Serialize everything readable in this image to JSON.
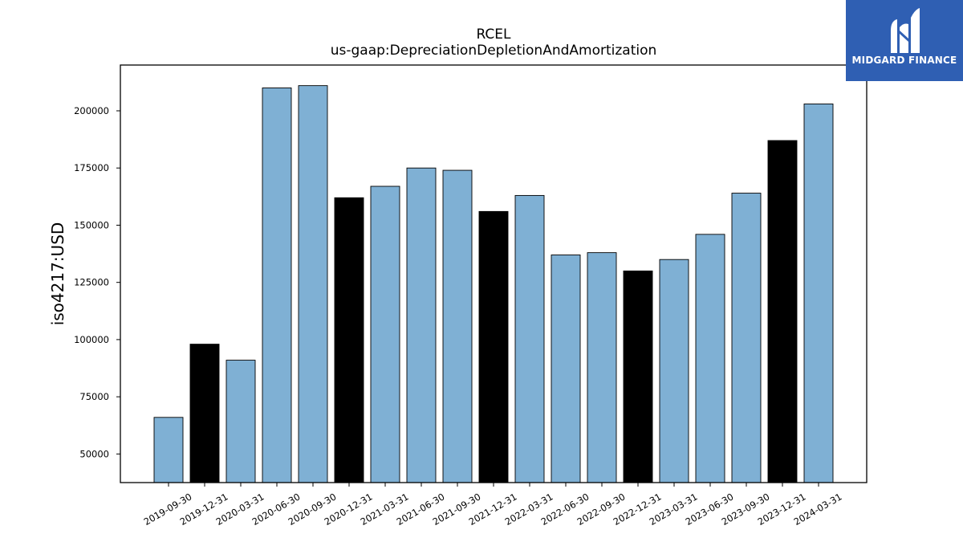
{
  "chart_data": {
    "type": "bar",
    "title": "RCEL",
    "subtitle": "us-gaap:DepreciationDepletionAndAmortization",
    "xlabel": "",
    "ylabel": "iso4217:USD",
    "ylim": [
      37500,
      220000
    ],
    "yticks": [
      50000,
      75000,
      100000,
      125000,
      150000,
      175000,
      200000
    ],
    "grid": false,
    "categories": [
      "2019-09-30",
      "2019-12-31",
      "2020-03-31",
      "2020-06-30",
      "2020-09-30",
      "2020-12-31",
      "2021-03-31",
      "2021-06-30",
      "2021-09-30",
      "2021-12-31",
      "2022-03-31",
      "2022-06-30",
      "2022-09-30",
      "2022-12-31",
      "2023-03-31",
      "2023-06-30",
      "2023-09-30",
      "2023-12-31",
      "2024-03-31"
    ],
    "values": [
      66000,
      98000,
      91000,
      210000,
      211000,
      162000,
      167000,
      175000,
      174000,
      156000,
      163000,
      137000,
      138000,
      130000,
      135000,
      146000,
      164000,
      187000,
      203000
    ],
    "bar_colors": [
      "#7fb0d4",
      "#000000",
      "#7fb0d4",
      "#7fb0d4",
      "#7fb0d4",
      "#000000",
      "#7fb0d4",
      "#7fb0d4",
      "#7fb0d4",
      "#000000",
      "#7fb0d4",
      "#7fb0d4",
      "#7fb0d4",
      "#000000",
      "#7fb0d4",
      "#7fb0d4",
      "#7fb0d4",
      "#000000",
      "#7fb0d4"
    ]
  },
  "logo": {
    "text": "MIDGARD FINANCE",
    "background": "#2f5fb3"
  }
}
